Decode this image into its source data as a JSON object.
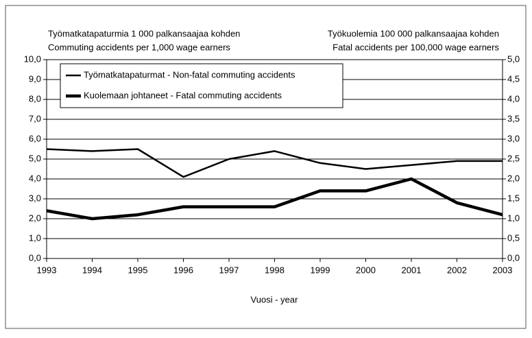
{
  "chart_data": {
    "type": "line",
    "ylabel": [
      "Työmatkatapaturmia 1 000 palkansaajaa kohden",
      "Commuting accidents per 1,000 wage earners"
    ],
    "y2label": [
      "Työkuolemia 100 000 palkansaajaa kohden",
      "Fatal accidents per 100,000 wage earners"
    ],
    "xlabel": "Vuosi - year",
    "categories": [
      "1993",
      "1994",
      "1995",
      "1996",
      "1997",
      "1998",
      "1999",
      "2000",
      "2001",
      "2002",
      "2003"
    ],
    "series": [
      {
        "name": "Työmatkatapaturmat - Non-fatal commuting accidents",
        "color": "#000000",
        "axis": "y",
        "values": [
          5.5,
          5.4,
          5.5,
          4.1,
          5.0,
          5.4,
          4.8,
          4.5,
          4.7,
          4.9,
          4.9
        ]
      },
      {
        "name": "Kuolemaan johtaneet - Fatal commuting accidents",
        "color": "#000000",
        "axis": "y2",
        "values": [
          1.2,
          1.0,
          1.1,
          1.3,
          1.3,
          1.3,
          1.7,
          1.7,
          2.0,
          1.4,
          1.1
        ]
      }
    ],
    "ylim": [
      0,
      10
    ],
    "yticks": [
      {
        "value": 0,
        "label": "0,0"
      },
      {
        "value": 1,
        "label": "1,0"
      },
      {
        "value": 2,
        "label": "2,0"
      },
      {
        "value": 3,
        "label": "3,0"
      },
      {
        "value": 4,
        "label": "4,0"
      },
      {
        "value": 5,
        "label": "5,0"
      },
      {
        "value": 6,
        "label": "6,0"
      },
      {
        "value": 7,
        "label": "7,0"
      },
      {
        "value": 8,
        "label": "8,0"
      },
      {
        "value": 9,
        "label": "9,0"
      },
      {
        "value": 10,
        "label": "10,0"
      }
    ],
    "y2lim": [
      0,
      5
    ],
    "y2ticks": [
      {
        "value": 0,
        "label": "0,0"
      },
      {
        "value": 0.5,
        "label": "0,5"
      },
      {
        "value": 1,
        "label": "1,0"
      },
      {
        "value": 1.5,
        "label": "1,5"
      },
      {
        "value": 2,
        "label": "2,0"
      },
      {
        "value": 2.5,
        "label": "2,5"
      },
      {
        "value": 3,
        "label": "3,0"
      },
      {
        "value": 3.5,
        "label": "3,5"
      },
      {
        "value": 4,
        "label": "4,0"
      },
      {
        "value": 4.5,
        "label": "4,5"
      },
      {
        "value": 5,
        "label": "5,0"
      }
    ],
    "grid": true,
    "legend": "upper left"
  }
}
